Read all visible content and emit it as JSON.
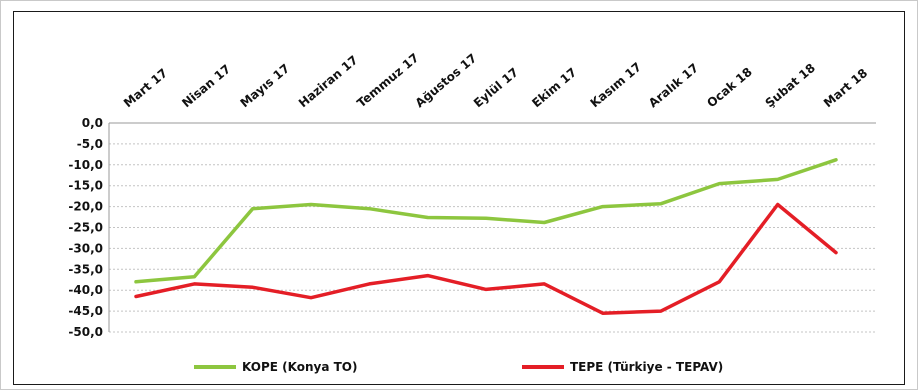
{
  "chart_data": {
    "type": "line",
    "categories": [
      "Mart 17",
      "Nisan 17",
      "Mayıs 17",
      "Haziran 17",
      "Temmuz 17",
      "Ağustos 17",
      "Eylül 17",
      "Ekim 17",
      "Kasım 17",
      "Aralık 17",
      "Ocak 18",
      "Şubat 18",
      "Mart 18"
    ],
    "series": [
      {
        "name": "KOPE (Konya TO)",
        "color": "#8dc63f",
        "values": [
          -38.0,
          -36.8,
          -20.5,
          -19.5,
          -20.5,
          -22.6,
          -22.8,
          -23.8,
          -20.0,
          -19.3,
          -14.5,
          -13.5,
          -8.8
        ]
      },
      {
        "name": "TEPE (Türkiye - TEPAV)",
        "color": "#e41e26",
        "values": [
          -41.5,
          -38.5,
          -39.3,
          -41.8,
          -38.5,
          -36.5,
          -39.8,
          -38.5,
          -45.5,
          -45.0,
          -38.0,
          -19.5,
          -31.0
        ]
      }
    ],
    "y_ticks": [
      "0,0",
      "-5,0",
      "-10,0",
      "-15,0",
      "-20,0",
      "-25,0",
      "-30,0",
      "-35,0",
      "-40,0",
      "-45,0",
      "-50,0"
    ],
    "ylim": [
      -50,
      0
    ],
    "grid": true,
    "legend_position": "bottom",
    "x_axis_position": "top",
    "title": "",
    "xlabel": "",
    "ylabel": ""
  }
}
